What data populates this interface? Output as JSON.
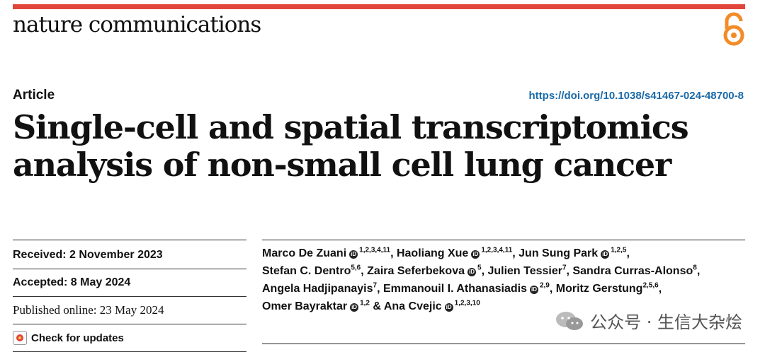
{
  "journal": {
    "name": "nature communications"
  },
  "article": {
    "type": "Article",
    "doi": "https://doi.org/10.1038/s41467-024-48700-8",
    "title_line1": "Single-cell and spatial transcriptomics",
    "title_line2": "analysis of non-small cell lung cancer"
  },
  "dates": {
    "received": "Received: 2 November 2023",
    "accepted": "Accepted: 8 May 2024",
    "published": "Published online: 23 May 2024",
    "check_updates": "Check for updates"
  },
  "authors": [
    {
      "name": "Marco De Zuani",
      "orcid": true,
      "aff": "1,2,3,4,11"
    },
    {
      "name": "Haoliang Xue",
      "orcid": true,
      "aff": "1,2,3,4,11"
    },
    {
      "name": "Jun Sung Park",
      "orcid": true,
      "aff": "1,2,5"
    },
    {
      "name": "Stefan C. Dentro",
      "orcid": false,
      "aff": "5,6"
    },
    {
      "name": "Zaira Seferbekova",
      "orcid": true,
      "aff": "5"
    },
    {
      "name": "Julien Tessier",
      "orcid": false,
      "aff": "7"
    },
    {
      "name": "Sandra Curras-Alonso",
      "orcid": false,
      "aff": "8"
    },
    {
      "name": "Angela Hadjipanayis",
      "orcid": false,
      "aff": "7"
    },
    {
      "name": "Emmanouil I. Athanasiadis",
      "orcid": true,
      "aff": "2,9"
    },
    {
      "name": "Moritz Gerstung",
      "orcid": false,
      "aff": "2,5,6"
    },
    {
      "name": "Omer Bayraktar",
      "orcid": true,
      "aff": "1,2"
    },
    {
      "name": "Ana Cvejic",
      "orcid": true,
      "aff": "1,2,3,10"
    }
  ],
  "authors_conj": "&",
  "watermark": {
    "text": "公众号 · 生信大杂烩",
    "icon": "wechat-icon"
  },
  "colors": {
    "accent_bar": "#e2453a",
    "oa_icon": "#f28c28",
    "doi_link": "#1a6aa8"
  }
}
